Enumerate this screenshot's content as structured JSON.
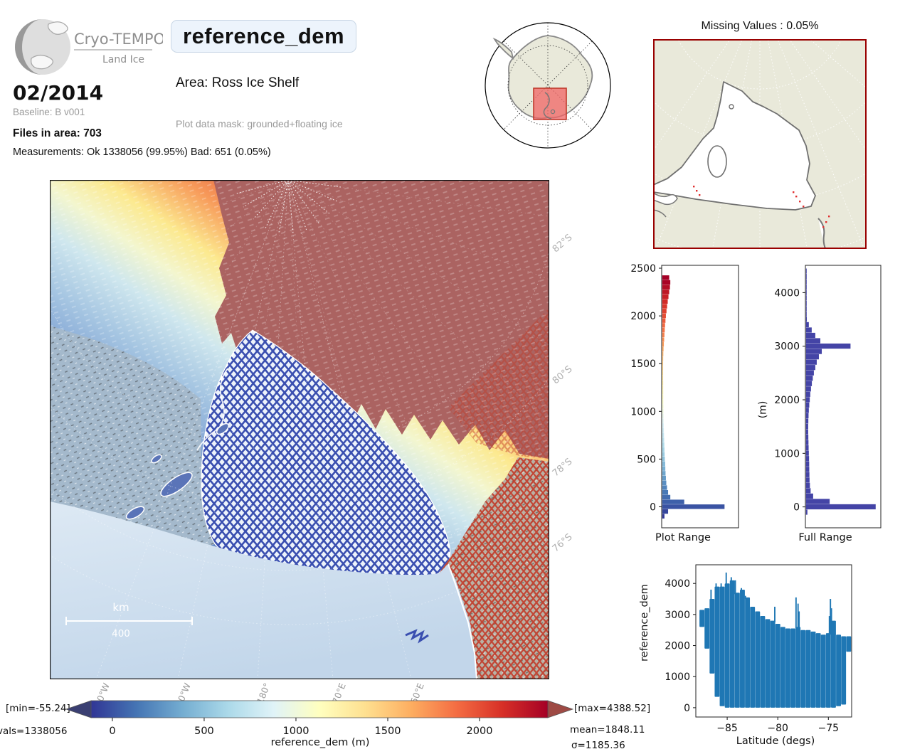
{
  "header": {
    "brand": "Cryo-TEMPO",
    "product": "Land Ice",
    "title": "reference_dem",
    "date": "02/2014",
    "baseline": "Baseline: B v001",
    "files": "Files in area: 703",
    "measurements": "Measurements: Ok 1338056 (99.95%) Bad: 651 (0.05%)",
    "area": "Area: Ross Ice Shelf",
    "mask": "Plot data mask: grounded+floating ice"
  },
  "missing_map": {
    "title": "Missing Values : 0.05%"
  },
  "main_map": {
    "lat_labels": [
      "82°S",
      "80°S",
      "78°S",
      "76°S"
    ],
    "lon_labels": [
      "160°W",
      "170°W",
      "180°",
      "170°E",
      "160°E"
    ],
    "scalebar": {
      "unit": "km",
      "value": "400"
    }
  },
  "colorbar": {
    "label": "reference_dem (m)",
    "ticks": [
      0,
      500,
      1000,
      1500,
      2000
    ],
    "vmin": -116,
    "vmax": 2372,
    "stops": [
      "#313695",
      "#4575b4",
      "#74add1",
      "#abd9e9",
      "#e0f3f8",
      "#ffffbf",
      "#fee090",
      "#fdae61",
      "#f46d43",
      "#d73027",
      "#a50026"
    ],
    "under_color": "#3a3f72",
    "over_color": "#9e4a44",
    "min_text": "[min=-55.24]",
    "max_text": "[max=4388.52]",
    "vals_text": "vals=1338056",
    "mean_text": "mean=1848.11",
    "sigma_text": "σ=1185.36"
  },
  "colors": {
    "scatter_blue": "#1f77b4",
    "full_range_bar": "#4444a6",
    "track_blue": "#3a4fb0",
    "track_red": "#c23a28",
    "inset_highlight": "#e05a50"
  },
  "chart_data": [
    {
      "type": "bar",
      "orientation": "horizontal",
      "title": "Plot Range",
      "ylim": [
        -220,
        2530
      ],
      "yticks": [
        0,
        500,
        1000,
        1500,
        2000,
        2500
      ],
      "color_by_value": true,
      "bins": {
        "start": -100,
        "step": 50,
        "fractions": [
          0.03,
          0.08,
          0.85,
          0.3,
          0.11,
          0.08,
          0.065,
          0.055,
          0.05,
          0.045,
          0.042,
          0.04,
          0.035,
          0.032,
          0.03,
          0.028,
          0.026,
          0.024,
          0.022,
          0.021,
          0.02,
          0.018,
          0.017,
          0.016,
          0.015,
          0.014,
          0.014,
          0.013,
          0.013,
          0.012,
          0.012,
          0.012,
          0.012,
          0.013,
          0.015,
          0.018,
          0.022,
          0.026,
          0.03,
          0.034,
          0.038,
          0.044,
          0.05,
          0.058,
          0.066,
          0.075,
          0.085,
          0.095,
          0.105,
          0.11,
          0.095
        ]
      }
    },
    {
      "type": "bar",
      "orientation": "horizontal",
      "title": "Full Range",
      "ylabel": "(m)",
      "ylim": [
        -390,
        4510
      ],
      "yticks": [
        0,
        1000,
        2000,
        3000,
        4000
      ],
      "color_by_value": false,
      "bins": {
        "start": -100,
        "step": 100,
        "fractions": [
          0.02,
          0.97,
          0.33,
          0.1,
          0.065,
          0.055,
          0.05,
          0.048,
          0.046,
          0.045,
          0.043,
          0.04,
          0.037,
          0.035,
          0.033,
          0.031,
          0.031,
          0.033,
          0.036,
          0.04,
          0.046,
          0.053,
          0.06,
          0.07,
          0.082,
          0.095,
          0.11,
          0.13,
          0.15,
          0.18,
          0.22,
          0.62,
          0.2,
          0.13,
          0.08,
          0.04,
          0.012,
          0.006,
          0.005,
          0.004,
          0.004,
          0.003,
          0.003,
          0.002,
          0.002,
          0.002
        ]
      }
    },
    {
      "type": "scatter",
      "title": "",
      "xlabel": "Latitude (degs)",
      "ylabel": "reference_dem",
      "xticks": [
        -85,
        -80,
        -75
      ],
      "yticks": [
        0,
        1000,
        2000,
        3000,
        4000
      ],
      "xlim": [
        -88.1,
        -72.7
      ],
      "ylim": [
        -300,
        4600
      ],
      "envelope": [
        [
          -87.5,
          2600,
          3150
        ],
        [
          -87.0,
          1900,
          3200
        ],
        [
          -86.5,
          1100,
          3500
        ],
        [
          -86.0,
          350,
          3900
        ],
        [
          -85.5,
          50,
          3900
        ],
        [
          -85.0,
          0,
          4000
        ],
        [
          -84.5,
          0,
          4100
        ],
        [
          -84.0,
          0,
          3700
        ],
        [
          -83.5,
          0,
          3800
        ],
        [
          -83.0,
          0,
          3550
        ],
        [
          -82.5,
          0,
          3250
        ],
        [
          -82.0,
          0,
          3100
        ],
        [
          -81.5,
          0,
          2950
        ],
        [
          -81.0,
          0,
          2850
        ],
        [
          -80.5,
          0,
          2800
        ],
        [
          -80.0,
          0,
          2700
        ],
        [
          -79.5,
          0,
          2600
        ],
        [
          -79.0,
          0,
          2550
        ],
        [
          -78.5,
          0,
          2550
        ],
        [
          -78.0,
          0,
          2600
        ],
        [
          -77.5,
          0,
          2500
        ],
        [
          -77.0,
          0,
          2500
        ],
        [
          -76.5,
          0,
          2450
        ],
        [
          -76.0,
          0,
          2400
        ],
        [
          -75.5,
          0,
          2350
        ],
        [
          -75.0,
          0,
          2400
        ],
        [
          -74.5,
          0,
          2800
        ],
        [
          -74.0,
          50,
          2350
        ],
        [
          -73.5,
          100,
          2300
        ],
        [
          -73.0,
          1800,
          2300
        ]
      ],
      "spikes": [
        [
          -85.1,
          4350
        ],
        [
          -84.6,
          4200
        ],
        [
          -84.2,
          4100
        ],
        [
          -85.6,
          4000
        ],
        [
          -86.1,
          4000
        ],
        [
          -86.6,
          3800
        ],
        [
          -83.6,
          3850
        ],
        [
          -83.2,
          3600
        ],
        [
          -80.3,
          3250
        ],
        [
          -78.2,
          3550
        ],
        [
          -78.0,
          3350
        ],
        [
          -77.9,
          3100
        ],
        [
          -74.8,
          3500
        ],
        [
          -74.7,
          3200
        ],
        [
          -74.9,
          2950
        ]
      ]
    }
  ]
}
